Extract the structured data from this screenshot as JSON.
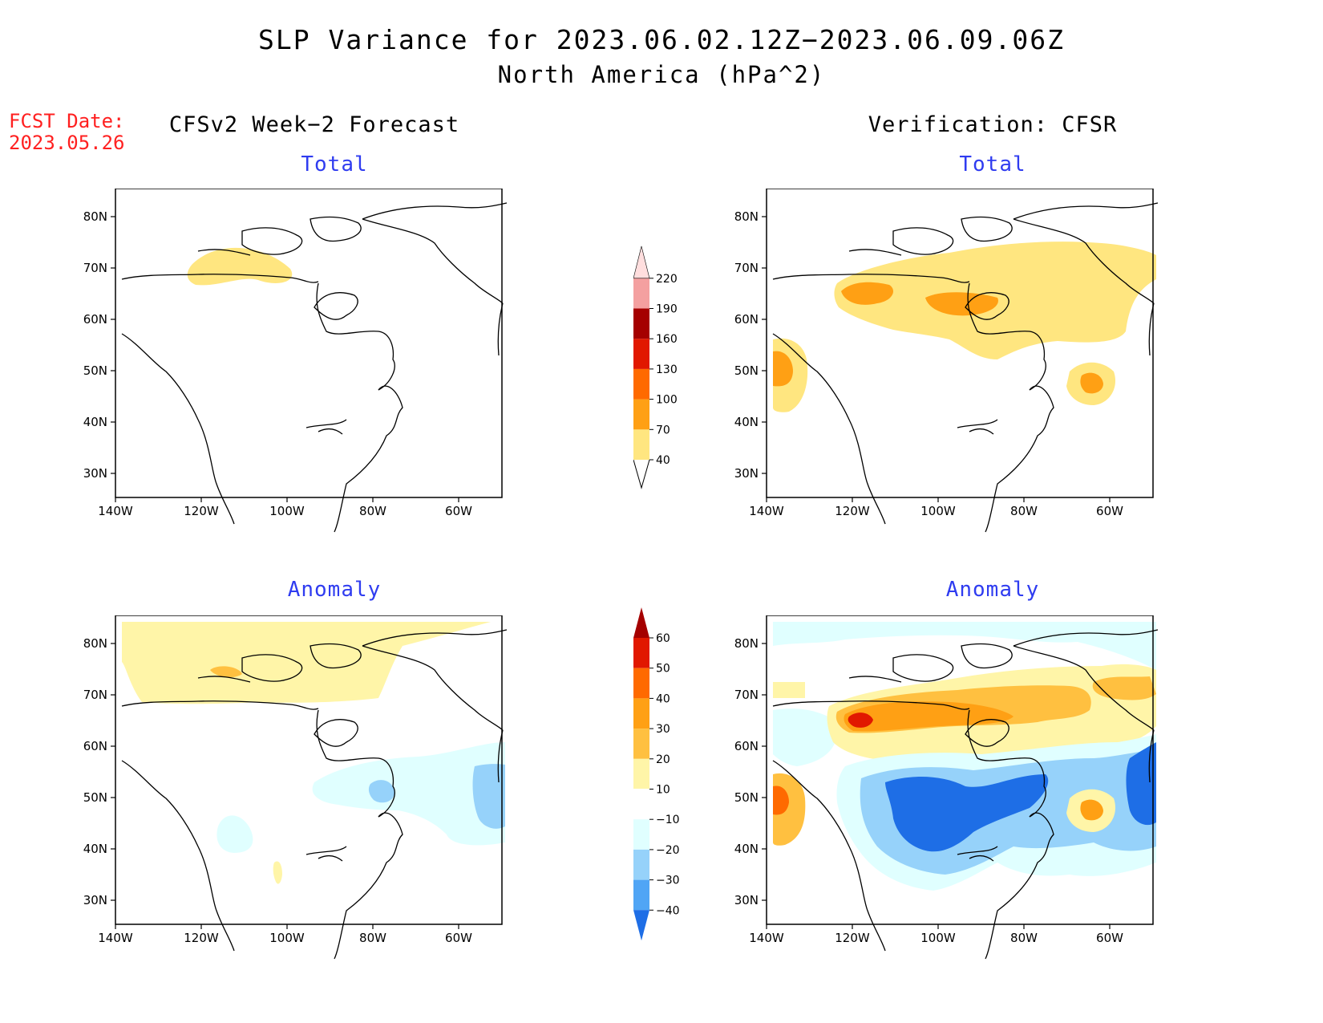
{
  "header": {
    "title": "SLP Variance for 2023.06.02.12Z−2023.06.09.06Z",
    "subtitle": "North America (hPa^2)",
    "fcst_label": "FCST Date:",
    "fcst_date": "2023.05.26"
  },
  "columns": {
    "left_title": "CFSv2 Week−2 Forecast",
    "right_title": "Verification: CFSR"
  },
  "panels": {
    "total_label": "Total",
    "anomaly_label": "Anomaly"
  },
  "axes": {
    "lat_ticks": [
      "80N",
      "70N",
      "60N",
      "50N",
      "40N",
      "30N"
    ],
    "lon_ticks": [
      "140W",
      "120W",
      "100W",
      "80W",
      "60W"
    ]
  },
  "colorbars": {
    "total": {
      "levels": [
        "40",
        "70",
        "100",
        "130",
        "160",
        "190",
        "220"
      ],
      "colors": [
        "#ffe680",
        "#ffa014",
        "#ff6a00",
        "#e11800",
        "#a50000",
        "#f4a0a0",
        "#ffdede"
      ]
    },
    "anomaly": {
      "levels": [
        "60",
        "50",
        "40",
        "30",
        "20",
        "10",
        "−10",
        "−20",
        "−30",
        "−40"
      ],
      "colors": [
        "#a50000",
        "#e11800",
        "#ff6a00",
        "#ffa014",
        "#ffc040",
        "#fff5a8",
        "#ffffff",
        "#e0ffff",
        "#96d2fa",
        "#50a5f5",
        "#1e6ee6"
      ]
    }
  },
  "palette": {
    "y1": "#fff5a8",
    "y2": "#ffe680",
    "o1": "#ffc040",
    "o2": "#ffa014",
    "o3": "#ff6a00",
    "r1": "#e11800",
    "b0": "#e0ffff",
    "b1": "#96d2fa",
    "b2": "#50a5f5",
    "b3": "#1e6ee6"
  }
}
